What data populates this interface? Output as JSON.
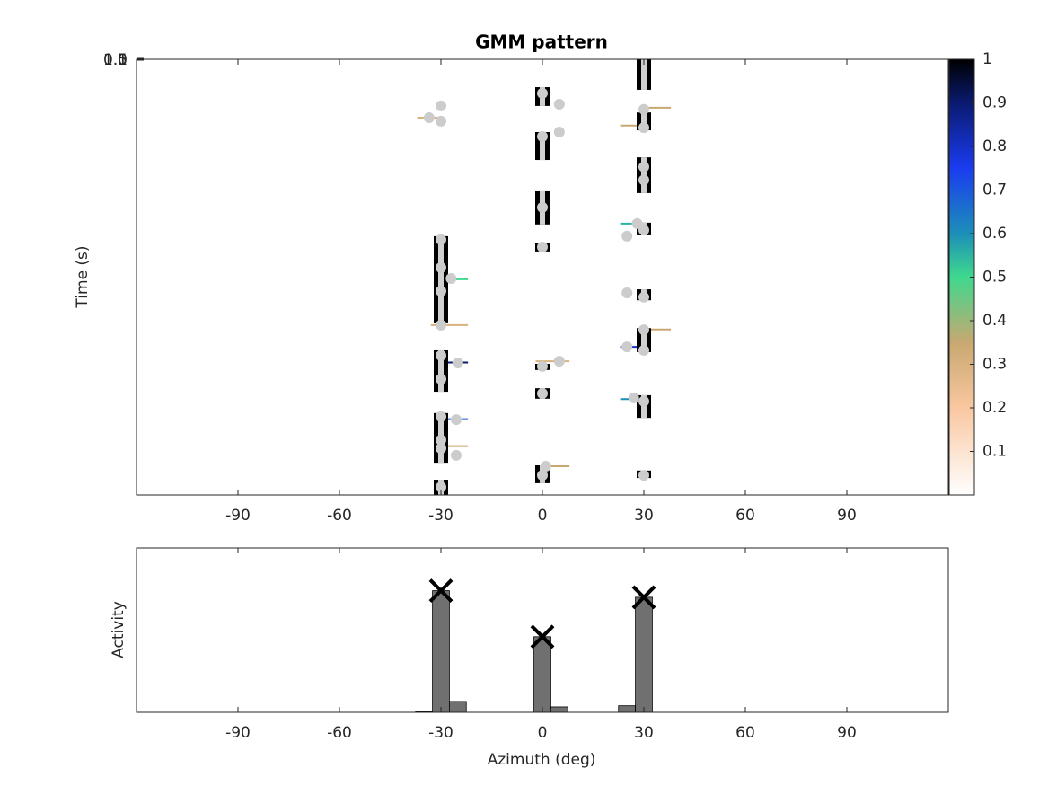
{
  "chart_data": [
    {
      "type": "heatmap-tracks",
      "title": "GMM pattern",
      "y_label": "Time (s)",
      "xlim": [
        -120,
        120
      ],
      "xticks": [
        -90,
        -60,
        -30,
        0,
        30,
        60,
        90
      ],
      "ylim": [
        0,
        1
      ],
      "ytick_labels": [
        "0",
        "0.5",
        "1",
        "1.5"
      ],
      "tracks": [
        {
          "x": -30,
          "t0": 0.406,
          "t1": 0.606
        },
        {
          "x": -30,
          "t0": 0.668,
          "t1": 0.763
        },
        {
          "x": -30,
          "t0": 0.812,
          "t1": 0.926
        },
        {
          "x": -30,
          "t0": 0.965,
          "t1": 1.0
        },
        {
          "x": 0,
          "t0": 0.064,
          "t1": 0.107
        },
        {
          "x": 0,
          "t0": 0.167,
          "t1": 0.231
        },
        {
          "x": 0,
          "t0": 0.303,
          "t1": 0.379
        },
        {
          "x": 0,
          "t0": 0.421,
          "t1": 0.441
        },
        {
          "x": 0,
          "t0": 0.699,
          "t1": 0.713
        },
        {
          "x": 0,
          "t0": 0.755,
          "t1": 0.779
        },
        {
          "x": 0,
          "t0": 0.932,
          "t1": 0.973
        },
        {
          "x": 30,
          "t0": 0.0,
          "t1": 0.07
        },
        {
          "x": 30,
          "t0": 0.122,
          "t1": 0.163
        },
        {
          "x": 30,
          "t0": 0.225,
          "t1": 0.307
        },
        {
          "x": 30,
          "t0": 0.375,
          "t1": 0.404
        },
        {
          "x": 30,
          "t0": 0.528,
          "t1": 0.553
        },
        {
          "x": 30,
          "t0": 0.617,
          "t1": 0.672
        },
        {
          "x": 30,
          "t0": 0.771,
          "t1": 0.823
        },
        {
          "x": 30,
          "t0": 0.944,
          "t1": 0.961
        }
      ],
      "points": [
        {
          "x": -30,
          "t": 0.107
        },
        {
          "x": -33.5,
          "t": 0.134
        },
        {
          "x": -30,
          "t": 0.142
        },
        {
          "x": -30,
          "t": 0.414
        },
        {
          "x": -30,
          "t": 0.478
        },
        {
          "x": -27,
          "t": 0.503
        },
        {
          "x": -30,
          "t": 0.532
        },
        {
          "x": -30,
          "t": 0.61
        },
        {
          "x": -30,
          "t": 0.68
        },
        {
          "x": -25,
          "t": 0.697
        },
        {
          "x": -30,
          "t": 0.734
        },
        {
          "x": -30,
          "t": 0.82
        },
        {
          "x": -25.5,
          "t": 0.827
        },
        {
          "x": -30,
          "t": 0.874
        },
        {
          "x": -30,
          "t": 0.893
        },
        {
          "x": -25.5,
          "t": 0.909
        },
        {
          "x": -30,
          "t": 0.982
        },
        {
          "x": 0,
          "t": 0.078
        },
        {
          "x": 5,
          "t": 0.103
        },
        {
          "x": 0,
          "t": 0.177
        },
        {
          "x": 5,
          "t": 0.167
        },
        {
          "x": 0,
          "t": 0.34
        },
        {
          "x": 0,
          "t": 0.431
        },
        {
          "x": 0,
          "t": 0.705
        },
        {
          "x": 5,
          "t": 0.693
        },
        {
          "x": 0,
          "t": 0.767
        },
        {
          "x": 1,
          "t": 0.934
        },
        {
          "x": 0,
          "t": 0.955
        },
        {
          "x": 30,
          "t": 0.115
        },
        {
          "x": 30,
          "t": 0.157
        },
        {
          "x": 30,
          "t": 0.247
        },
        {
          "x": 30,
          "t": 0.277
        },
        {
          "x": 28,
          "t": 0.377
        },
        {
          "x": 25,
          "t": 0.406
        },
        {
          "x": 30,
          "t": 0.392
        },
        {
          "x": 25,
          "t": 0.536
        },
        {
          "x": 30,
          "t": 0.546
        },
        {
          "x": 30,
          "t": 0.621
        },
        {
          "x": 25,
          "t": 0.66
        },
        {
          "x": 30,
          "t": 0.668
        },
        {
          "x": 27,
          "t": 0.777
        },
        {
          "x": 30,
          "t": 0.785
        },
        {
          "x": 30,
          "t": 0.955
        }
      ],
      "links": [
        {
          "x0": -31,
          "x1": -22,
          "t": 0.505,
          "value": 0.5
        },
        {
          "x0": -33,
          "x1": -22,
          "t": 0.61,
          "value": 0.3
        },
        {
          "x0": -32,
          "x1": -22,
          "t": 0.696,
          "value": 0.9
        },
        {
          "x0": -32,
          "x1": -22,
          "t": 0.826,
          "value": 0.7
        },
        {
          "x0": -32,
          "x1": -22,
          "t": 0.888,
          "value": 0.35
        },
        {
          "x0": -37,
          "x1": -30,
          "t": 0.134,
          "value": 0.3
        },
        {
          "x0": 0,
          "x1": 8,
          "t": 0.934,
          "value": 0.35
        },
        {
          "x0": -2,
          "x1": 8,
          "t": 0.693,
          "value": 0.3
        },
        {
          "x0": 30,
          "x1": 38,
          "t": 0.111,
          "value": 0.35
        },
        {
          "x0": 23,
          "x1": 30,
          "t": 0.152,
          "value": 0.35
        },
        {
          "x0": 23,
          "x1": 30,
          "t": 0.377,
          "value": 0.55
        },
        {
          "x0": 23,
          "x1": 30,
          "t": 0.66,
          "value": 0.8
        },
        {
          "x0": 30,
          "x1": 38,
          "t": 0.62,
          "value": 0.35
        },
        {
          "x0": 23,
          "x1": 30,
          "t": 0.78,
          "value": 0.6
        }
      ],
      "colorbar": {
        "lim": [
          0,
          1
        ],
        "ticks": [
          0.1,
          0.2,
          0.3,
          0.4,
          0.5,
          0.6,
          0.7,
          0.8,
          0.9,
          1
        ],
        "colormap": [
          [
            0,
            "#ffffff"
          ],
          [
            0.2,
            "#f9c7a0"
          ],
          [
            0.35,
            "#c8a870"
          ],
          [
            0.5,
            "#3fd88e"
          ],
          [
            0.6,
            "#1c8fb8"
          ],
          [
            0.75,
            "#1a3cf0"
          ],
          [
            0.9,
            "#0a1a70"
          ],
          [
            1,
            "#000000"
          ]
        ]
      }
    },
    {
      "type": "bar",
      "x_label": "Azimuth (deg)",
      "y_label": "Activity",
      "xlim": [
        -120,
        120
      ],
      "xticks": [
        -90,
        -60,
        -30,
        0,
        30,
        60,
        90
      ],
      "ylim": [
        0,
        1
      ],
      "bar_width": 5,
      "color": "#707070",
      "x": [
        -35,
        -30,
        -25,
        0,
        5,
        25,
        30
      ],
      "values": [
        0.005,
        0.74,
        0.066,
        0.46,
        0.033,
        0.04,
        0.7
      ],
      "peaks": {
        "x": [
          -30,
          0,
          30
        ],
        "values": [
          0.74,
          0.46,
          0.7
        ]
      }
    }
  ]
}
